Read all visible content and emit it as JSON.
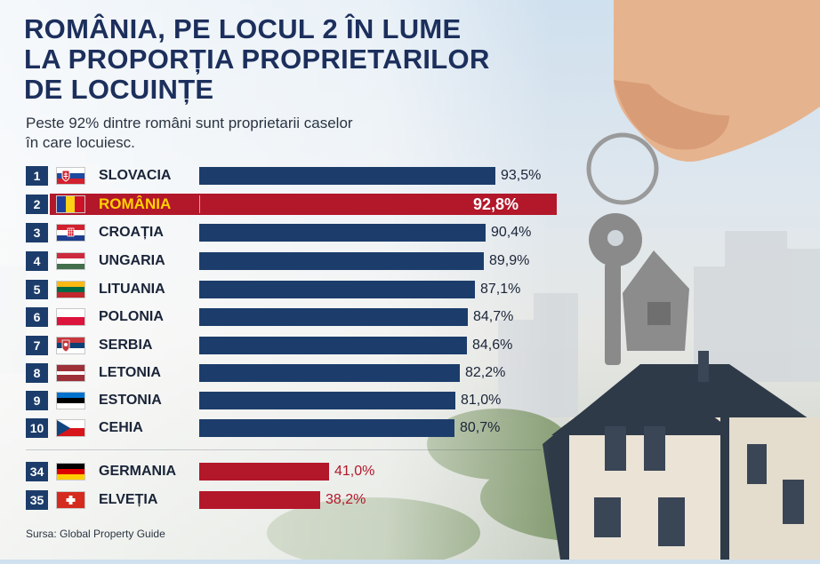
{
  "header": {
    "title_lines": [
      "ROMÂNIA, PE LOCUL 2 ÎN LUME",
      "LA PROPORȚIA PROPRIETARILOR",
      "DE LOCUINȚE"
    ],
    "subtitle_lines": [
      "Peste 92% dintre români sunt proprietarii caselor",
      "în care locuiesc."
    ]
  },
  "footer": {
    "source": "Sursa: Global Property Guide"
  },
  "colors": {
    "top10_bar": "#1c3d6b",
    "highlight": "#b3172a",
    "low_bar": "#b3172a",
    "rank_box": "#1c3d6b",
    "title": "#1c2f5c"
  },
  "chart_data": {
    "type": "bar",
    "orientation": "horizontal",
    "categories": [
      "SLOVACIA",
      "ROMÂNIA",
      "CROAȚIA",
      "UNGARIA",
      "LITUANIA",
      "POLONIA",
      "SERBIA",
      "LETONIA",
      "ESTONIA",
      "CEHIA",
      "GERMANIA",
      "ELVEȚIA"
    ],
    "ranks": [
      "1",
      "2",
      "3",
      "4",
      "5",
      "6",
      "7",
      "8",
      "9",
      "10",
      "34",
      "35"
    ],
    "values": [
      93.5,
      92.8,
      90.4,
      89.9,
      87.1,
      84.7,
      84.6,
      82.2,
      81.0,
      80.7,
      41.0,
      38.2
    ],
    "value_labels": [
      "93,5%",
      "92,8%",
      "90,4%",
      "89,9%",
      "87,1%",
      "84,7%",
      "84,6%",
      "82,2%",
      "81,0%",
      "80,7%",
      "41,0%",
      "38,2%"
    ],
    "flags": [
      "slovakia",
      "romania",
      "croatia",
      "hungary",
      "lithuania",
      "poland",
      "serbia",
      "latvia",
      "estonia",
      "czechia",
      "germany",
      "switzerland"
    ],
    "highlight": "ROMÂNIA",
    "xlim": [
      0,
      100
    ],
    "title": "ROMÂNIA, PE LOCUL 2 ÎN LUME LA PROPORȚIA PROPRIETARILOR DE LOCUINȚE",
    "subtitle": "Peste 92% dintre români sunt proprietarii caselor în care locuiesc.",
    "source": "Sursa: Global Property Guide",
    "grid": false
  }
}
